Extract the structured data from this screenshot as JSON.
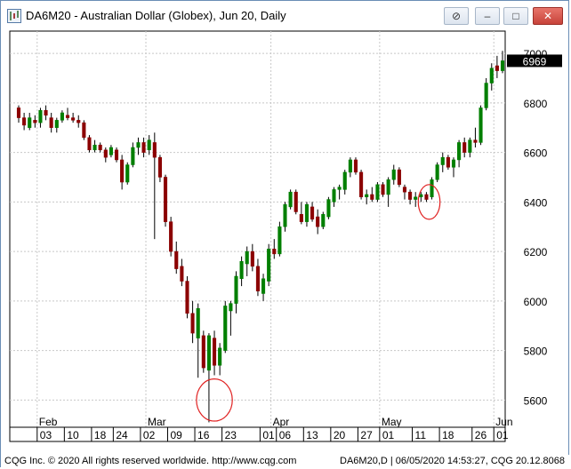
{
  "window": {
    "title": "DA6M20 - Australian Dollar (Globex), Jun 20, Daily",
    "buttons": {
      "attach": "⊘",
      "minimize": "–",
      "maximize": "□",
      "close": "✕"
    }
  },
  "footer": {
    "left": "CQG Inc. © 2020 All rights reserved worldwide. http://www.cqg.com",
    "right": "DA6M20,D | 06/05/2020 14:53:27, CQG 20.12.8068"
  },
  "colors": {
    "up": "#007f00",
    "down": "#8b0000",
    "grid": "#c8c8c8",
    "circle": "#e02020",
    "price_tag_bg": "#000000"
  },
  "chart_data": {
    "type": "candlestick",
    "title": "",
    "ylim": [
      5490,
      7090
    ],
    "yticks": [
      5600,
      5800,
      6000,
      6200,
      6400,
      6600,
      6800,
      7000
    ],
    "last_price": "6969",
    "month_labels": [
      {
        "label": "Feb",
        "at": 4
      },
      {
        "label": "Mar",
        "at": 24
      },
      {
        "label": "Apr",
        "at": 47
      },
      {
        "label": "May",
        "at": 67
      },
      {
        "label": "Jun",
        "at": 88
      }
    ],
    "day_labels": [
      {
        "label": "03",
        "at": 4
      },
      {
        "label": "10",
        "at": 9
      },
      {
        "label": "18",
        "at": 14
      },
      {
        "label": "24",
        "at": 18
      },
      {
        "label": "02",
        "at": 23
      },
      {
        "label": "09",
        "at": 28
      },
      {
        "label": "16",
        "at": 33
      },
      {
        "label": "23",
        "at": 38
      },
      {
        "label": "01",
        "at": 45
      },
      {
        "label": "06",
        "at": 48
      },
      {
        "label": "13",
        "at": 53
      },
      {
        "label": "20",
        "at": 58
      },
      {
        "label": "27",
        "at": 63
      },
      {
        "label": "01",
        "at": 67
      },
      {
        "label": "11",
        "at": 73
      },
      {
        "label": "18",
        "at": 78
      },
      {
        "label": "26",
        "at": 84
      },
      {
        "label": "01",
        "at": 88
      }
    ],
    "annotations": [
      {
        "type": "circle",
        "center_bar": 36,
        "center_price": 5600,
        "rx_bars": 3.3,
        "ry_price": 85
      },
      {
        "type": "circle",
        "center_bar": 75.5,
        "center_price": 6400,
        "rx_bars": 2.0,
        "ry_price": 70
      }
    ],
    "candles": [
      [
        6780,
        6790,
        6720,
        6740
      ],
      [
        6740,
        6760,
        6690,
        6710
      ],
      [
        6700,
        6760,
        6690,
        6740
      ],
      [
        6730,
        6750,
        6700,
        6720
      ],
      [
        6720,
        6780,
        6700,
        6770
      ],
      [
        6770,
        6790,
        6730,
        6750
      ],
      [
        6740,
        6760,
        6680,
        6700
      ],
      [
        6700,
        6740,
        6680,
        6730
      ],
      [
        6730,
        6770,
        6720,
        6760
      ],
      [
        6750,
        6780,
        6730,
        6740
      ],
      [
        6740,
        6760,
        6720,
        6730
      ],
      [
        6730,
        6750,
        6700,
        6720
      ],
      [
        6720,
        6730,
        6650,
        6660
      ],
      [
        6660,
        6670,
        6600,
        6610
      ],
      [
        6610,
        6650,
        6600,
        6630
      ],
      [
        6630,
        6640,
        6600,
        6610
      ],
      [
        6610,
        6620,
        6560,
        6580
      ],
      [
        6590,
        6630,
        6580,
        6620
      ],
      [
        6610,
        6620,
        6560,
        6570
      ],
      [
        6570,
        6590,
        6450,
        6480
      ],
      [
        6480,
        6560,
        6470,
        6550
      ],
      [
        6550,
        6640,
        6540,
        6620
      ],
      [
        6620,
        6660,
        6590,
        6640
      ],
      [
        6640,
        6660,
        6580,
        6600
      ],
      [
        6610,
        6670,
        6590,
        6650
      ],
      [
        6640,
        6680,
        6250,
        6580
      ],
      [
        6580,
        6590,
        6480,
        6500
      ],
      [
        6500,
        6510,
        6300,
        6320
      ],
      [
        6320,
        6340,
        6180,
        6200
      ],
      [
        6200,
        6240,
        6110,
        6130
      ],
      [
        6140,
        6170,
        6060,
        6080
      ],
      [
        6080,
        6100,
        5930,
        5950
      ],
      [
        5950,
        6000,
        5830,
        5870
      ],
      [
        5850,
        5990,
        5690,
        5970
      ],
      [
        5860,
        5880,
        5710,
        5730
      ],
      [
        5720,
        5870,
        5510,
        5860
      ],
      [
        5850,
        5880,
        5700,
        5740
      ],
      [
        5740,
        5830,
        5700,
        5810
      ],
      [
        5800,
        6000,
        5790,
        5980
      ],
      [
        5960,
        6000,
        5860,
        5990
      ],
      [
        5990,
        6120,
        5950,
        6100
      ],
      [
        6090,
        6180,
        6060,
        6160
      ],
      [
        6150,
        6220,
        6100,
        6200
      ],
      [
        6200,
        6230,
        6120,
        6140
      ],
      [
        6140,
        6170,
        6020,
        6040
      ],
      [
        6030,
        6110,
        6000,
        6090
      ],
      [
        6080,
        6230,
        6060,
        6210
      ],
      [
        6210,
        6250,
        6170,
        6190
      ],
      [
        6190,
        6320,
        6180,
        6300
      ],
      [
        6300,
        6400,
        6280,
        6390
      ],
      [
        6380,
        6450,
        6370,
        6440
      ],
      [
        6440,
        6450,
        6350,
        6360
      ],
      [
        6350,
        6400,
        6310,
        6320
      ],
      [
        6320,
        6400,
        6300,
        6390
      ],
      [
        6380,
        6400,
        6320,
        6330
      ],
      [
        6340,
        6370,
        6270,
        6300
      ],
      [
        6300,
        6360,
        6290,
        6350
      ],
      [
        6340,
        6420,
        6330,
        6410
      ],
      [
        6400,
        6460,
        6380,
        6450
      ],
      [
        6450,
        6470,
        6410,
        6460
      ],
      [
        6450,
        6530,
        6430,
        6520
      ],
      [
        6520,
        6580,
        6500,
        6570
      ],
      [
        6570,
        6580,
        6510,
        6520
      ],
      [
        6520,
        6530,
        6410,
        6420
      ],
      [
        6420,
        6450,
        6390,
        6430
      ],
      [
        6430,
        6460,
        6400,
        6410
      ],
      [
        6410,
        6480,
        6400,
        6470
      ],
      [
        6470,
        6480,
        6420,
        6430
      ],
      [
        6430,
        6500,
        6380,
        6490
      ],
      [
        6490,
        6550,
        6470,
        6530
      ],
      [
        6530,
        6540,
        6460,
        6470
      ],
      [
        6460,
        6470,
        6410,
        6440
      ],
      [
        6440,
        6450,
        6390,
        6410
      ],
      [
        6410,
        6440,
        6380,
        6420
      ],
      [
        6420,
        6440,
        6400,
        6430
      ],
      [
        6430,
        6440,
        6400,
        6410
      ],
      [
        6420,
        6500,
        6410,
        6490
      ],
      [
        6490,
        6560,
        6480,
        6550
      ],
      [
        6550,
        6600,
        6520,
        6580
      ],
      [
        6580,
        6590,
        6530,
        6540
      ],
      [
        6540,
        6580,
        6500,
        6570
      ],
      [
        6570,
        6650,
        6540,
        6640
      ],
      [
        6640,
        6660,
        6580,
        6600
      ],
      [
        6600,
        6660,
        6580,
        6650
      ],
      [
        6650,
        6700,
        6620,
        6640
      ],
      [
        6640,
        6790,
        6630,
        6780
      ],
      [
        6780,
        6900,
        6770,
        6880
      ],
      [
        6880,
        6960,
        6850,
        6940
      ],
      [
        6950,
        6990,
        6900,
        6930
      ],
      [
        6930,
        7010,
        6920,
        6970
      ]
    ]
  }
}
